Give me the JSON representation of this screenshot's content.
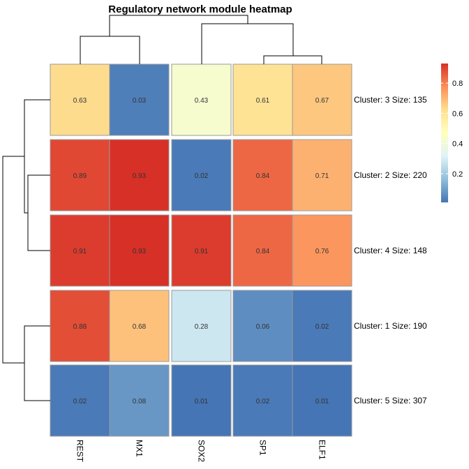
{
  "chart_data": {
    "type": "heatmap",
    "title": "Regulatory network module heatmap",
    "columns": [
      "REST",
      "MX1",
      "SOX2",
      "SP1",
      "ELF1"
    ],
    "rows": [
      "Cluster: 3 Size: 135",
      "Cluster: 2 Size: 220",
      "Cluster: 4 Size: 148",
      "Cluster: 1 Size: 190",
      "Cluster: 5 Size: 307"
    ],
    "values": [
      [
        0.63,
        0.03,
        0.43,
        0.61,
        0.67
      ],
      [
        0.89,
        0.93,
        0.02,
        0.84,
        0.71
      ],
      [
        0.91,
        0.93,
        0.91,
        0.84,
        0.76
      ],
      [
        0.88,
        0.68,
        0.28,
        0.06,
        0.02
      ],
      [
        0.02,
        0.08,
        0.01,
        0.02,
        0.01
      ]
    ],
    "value_labels": [
      [
        "0.63",
        "0.03",
        "0.43",
        "0.61",
        "0.67"
      ],
      [
        "0.89",
        "0.93",
        "0.02",
        "0.84",
        "0.71"
      ],
      [
        "0.91",
        "0.93",
        "0.91",
        "0.84",
        "0.76"
      ],
      [
        "0.88",
        "0.68",
        "0.28",
        "0.06",
        "0.02"
      ],
      [
        "0.02",
        "0.08",
        "0.01",
        "0.02",
        "0.01"
      ]
    ],
    "column_groups": [
      [
        0,
        1
      ],
      [
        2
      ],
      [
        3,
        4
      ]
    ],
    "row_groups": [
      [
        0
      ],
      [
        1,
        2
      ],
      [
        3,
        4
      ]
    ],
    "legend": {
      "position": "right",
      "ticks": [
        "0.2",
        "0.4",
        "0.6",
        "0.8"
      ],
      "range": [
        0.01,
        0.93
      ],
      "colors": [
        "#4575b4",
        "#91bfdb",
        "#e0f3f8",
        "#ffffbf",
        "#fee090",
        "#fc8d59",
        "#d73027"
      ]
    }
  }
}
